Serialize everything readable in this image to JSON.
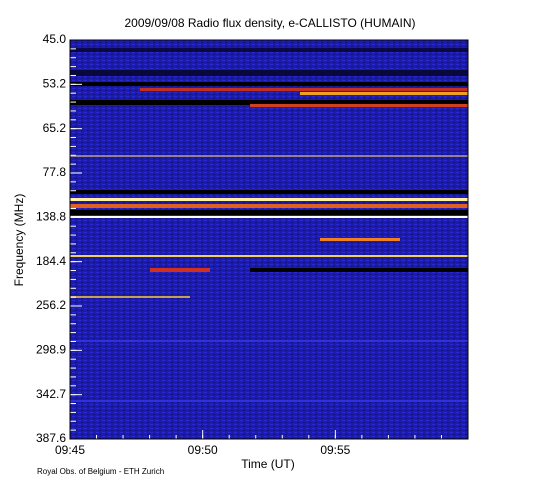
{
  "chart_data": {
    "type": "spectrogram",
    "title": "2009/09/08  Radio flux density, e-CALLISTO (HUMAIN)",
    "x_label": "Time (UT)",
    "y_label": "Frequency (MHz)",
    "xlim": [
      "09:45",
      "10:00"
    ],
    "xticks": [
      "09:45",
      "09:50",
      "09:55"
    ],
    "y_channel_labels": [
      "45.0",
      "53.2",
      "65.2",
      "77.8",
      "138.8",
      "184.4",
      "256.2",
      "298.9",
      "342.7",
      "387.6"
    ],
    "footer": "Royal Obs. of Belgium - ETH Zurich"
  }
}
